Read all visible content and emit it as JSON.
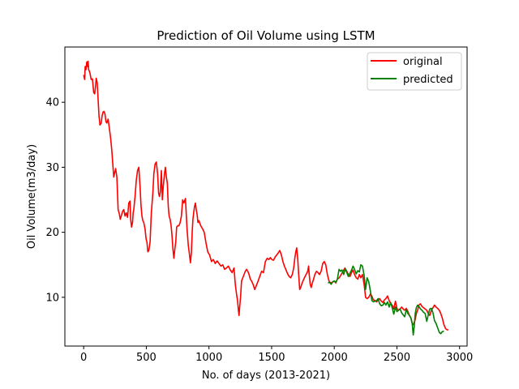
{
  "chart_data": {
    "type": "line",
    "title": "Prediction of Oil Volume using LSTM",
    "xlabel": "No. of days (2013-2021)",
    "ylabel": "Oil Volume(m3/day)",
    "xlim": [
      -150,
      3060
    ],
    "ylim": [
      2.5,
      48.5
    ],
    "xticks": [
      0,
      500,
      1000,
      1500,
      2000,
      2500,
      3000
    ],
    "yticks": [
      10,
      20,
      30,
      40
    ],
    "grid": false,
    "legend_position": "top-right",
    "series": [
      {
        "name": "original",
        "color": "#ff0000",
        "x": [
          0,
          8,
          12,
          18,
          25,
          30,
          35,
          40,
          45,
          50,
          60,
          70,
          80,
          88,
          95,
          100,
          108,
          115,
          122,
          130,
          140,
          148,
          155,
          162,
          170,
          178,
          185,
          195,
          205,
          215,
          225,
          240,
          255,
          265,
          275,
          285,
          292,
          300,
          310,
          320,
          330,
          340,
          350,
          360,
          370,
          375,
          382,
          390,
          395,
          400,
          410,
          420,
          430,
          440,
          450,
          458,
          465,
          472,
          480,
          490,
          498,
          505,
          512,
          520,
          530,
          540,
          552,
          560,
          570,
          580,
          590,
          598,
          605,
          612,
          620,
          628,
          635,
          645,
          652,
          660,
          668,
          675,
          682,
          690,
          698,
          705,
          712,
          720,
          728,
          735,
          742,
          750,
          760,
          770,
          780,
          790,
          800,
          812,
          825,
          835,
          845,
          852,
          860,
          866,
          872,
          878,
          885,
          892,
          898,
          905,
          912,
          920,
          930,
          940,
          950,
          962,
          975,
          990,
          1005,
          1020,
          1035,
          1050,
          1065,
          1080,
          1095,
          1110,
          1125,
          1140,
          1155,
          1170,
          1185,
          1200,
          1210,
          1220,
          1228,
          1235,
          1240,
          1245,
          1252,
          1260,
          1270,
          1280,
          1290,
          1300,
          1310,
          1320,
          1330,
          1340,
          1352,
          1365,
          1378,
          1392,
          1405,
          1420,
          1435,
          1450,
          1465,
          1478,
          1490,
          1502,
          1515,
          1528,
          1540,
          1552,
          1565,
          1578,
          1590,
          1602,
          1615,
          1628,
          1640,
          1652,
          1665,
          1676,
          1685,
          1693,
          1700,
          1708,
          1716,
          1724,
          1732,
          1740,
          1750,
          1762,
          1775,
          1788,
          1795,
          1800,
          1808,
          1816,
          1825,
          1835,
          1845,
          1858,
          1870,
          1882,
          1895,
          1908,
          1920,
          1932,
          1945,
          1958,
          1970,
          1985,
          2000,
          2012,
          2025,
          2040,
          2055,
          2070,
          2085,
          2100,
          2112,
          2125,
          2138,
          2150,
          2162,
          2175,
          2188,
          2200,
          2212,
          2225,
          2238,
          2250,
          2262,
          2275,
          2288,
          2300,
          2312,
          2325,
          2338,
          2350,
          2362,
          2375,
          2388,
          2400,
          2412,
          2425,
          2438,
          2450,
          2462,
          2475,
          2488,
          2500,
          2512,
          2525,
          2538,
          2550,
          2562,
          2575,
          2588,
          2600,
          2612,
          2625,
          2635,
          2645,
          2655,
          2665,
          2675,
          2688,
          2700,
          2712,
          2725,
          2738,
          2750,
          2762,
          2775,
          2788,
          2800,
          2812,
          2825,
          2838,
          2850,
          2862,
          2875,
          2888,
          2900,
          2910
        ],
        "y": [
          44.2,
          43.5,
          45.5,
          45.0,
          46.2,
          45.5,
          46.3,
          45.0,
          44.8,
          44.5,
          43.5,
          43.6,
          41.5,
          41.3,
          42.5,
          43.7,
          43.0,
          40.5,
          38.0,
          36.5,
          36.8,
          38.0,
          38.5,
          38.6,
          38.2,
          37.0,
          36.8,
          37.4,
          36.0,
          34.5,
          32.5,
          28.5,
          29.8,
          28.5,
          23.5,
          22.8,
          22.0,
          22.5,
          23.2,
          23.5,
          22.5,
          23.0,
          22.3,
          24.5,
          24.8,
          22.0,
          20.8,
          21.5,
          23.0,
          23.5,
          25.5,
          28.0,
          29.5,
          30.0,
          27.0,
          24.0,
          22.5,
          21.8,
          21.5,
          20.5,
          19.0,
          18.5,
          17.0,
          17.2,
          18.5,
          23.0,
          26.0,
          29.0,
          30.5,
          30.8,
          29.0,
          26.0,
          25.5,
          26.2,
          29.5,
          25.0,
          27.0,
          29.0,
          30.0,
          28.5,
          27.5,
          24.0,
          22.5,
          22.0,
          21.0,
          19.5,
          17.5,
          16.0,
          17.5,
          18.5,
          20.8,
          21.0,
          21.0,
          21.5,
          22.5,
          25.0,
          24.5,
          25.2,
          20.5,
          18.0,
          16.5,
          15.3,
          17.0,
          20.0,
          22.0,
          23.0,
          24.0,
          24.5,
          23.5,
          22.8,
          21.5,
          21.8,
          21.2,
          20.8,
          20.5,
          20.0,
          18.5,
          17.0,
          16.5,
          15.5,
          15.8,
          15.2,
          15.6,
          15.2,
          14.8,
          15.0,
          14.3,
          14.5,
          14.8,
          14.2,
          13.8,
          14.5,
          12.0,
          10.5,
          9.5,
          8.0,
          7.2,
          8.5,
          10.0,
          12.5,
          13.0,
          13.5,
          14.0,
          14.3,
          14.0,
          13.5,
          12.8,
          12.5,
          12.0,
          11.2,
          11.8,
          12.5,
          13.2,
          14.0,
          13.8,
          15.5,
          16.0,
          15.8,
          16.1,
          15.8,
          15.7,
          16.2,
          16.5,
          16.8,
          17.2,
          16.5,
          15.5,
          14.8,
          14.2,
          13.6,
          13.2,
          13.0,
          13.5,
          14.5,
          16.0,
          17.0,
          17.6,
          16.0,
          13.5,
          11.2,
          11.5,
          12.0,
          12.5,
          13.0,
          13.5,
          14.0,
          14.8,
          13.5,
          12.0,
          11.5,
          12.2,
          12.8,
          13.5,
          14.0,
          13.8,
          13.5,
          14.0,
          15.2,
          15.5,
          15.0,
          13.5,
          12.5,
          12.2,
          12.3,
          12.5,
          12.2,
          12.8,
          13.0,
          13.5,
          14.0,
          14.5,
          14.0,
          13.5,
          13.2,
          13.8,
          14.2,
          13.5,
          13.0,
          12.8,
          13.5,
          13.0,
          13.5,
          12.0,
          10.0,
          9.8,
          10.0,
          10.5,
          10.2,
          9.6,
          9.5,
          9.3,
          9.6,
          9.8,
          9.4,
          9.2,
          9.6,
          9.8,
          10.2,
          9.5,
          9.0,
          8.8,
          8.2,
          9.4,
          8.3,
          8.0,
          8.2,
          8.5,
          8.2,
          8.0,
          8.3,
          7.8,
          7.2,
          6.8,
          5.7,
          6.0,
          6.5,
          7.5,
          8.0,
          8.8,
          9.0,
          8.6,
          8.4,
          8.2,
          8.0,
          7.5,
          7.2,
          8.0,
          8.4,
          8.8,
          8.5,
          8.3,
          8.0,
          7.5,
          6.8,
          5.8,
          5.2,
          5.0,
          5.0
        ]
      },
      {
        "name": "predicted",
        "color": "#008000",
        "x": [
          1950,
          1962,
          1975,
          1988,
          2000,
          2012,
          2025,
          2038,
          2050,
          2062,
          2075,
          2088,
          2100,
          2112,
          2125,
          2138,
          2150,
          2162,
          2175,
          2188,
          2200,
          2212,
          2225,
          2238,
          2250,
          2262,
          2275,
          2288,
          2300,
          2312,
          2325,
          2338,
          2350,
          2362,
          2375,
          2388,
          2400,
          2412,
          2425,
          2438,
          2450,
          2462,
          2475,
          2488,
          2500,
          2512,
          2525,
          2538,
          2550,
          2562,
          2575,
          2588,
          2600,
          2612,
          2622,
          2630,
          2638,
          2646,
          2655,
          2665,
          2675,
          2688,
          2700,
          2712,
          2725,
          2738,
          2750,
          2762,
          2775,
          2788,
          2800,
          2812,
          2825,
          2838,
          2850,
          2862,
          2875
        ],
        "y": [
          12.2,
          12.3,
          12.0,
          12.4,
          12.5,
          12.3,
          12.8,
          14.3,
          14.0,
          14.2,
          13.5,
          14.4,
          13.8,
          13.2,
          13.7,
          14.2,
          14.8,
          14.3,
          13.6,
          14.1,
          13.9,
          15.0,
          14.8,
          13.4,
          11.2,
          13.0,
          12.4,
          11.0,
          9.5,
          9.3,
          9.4,
          9.5,
          9.8,
          9.0,
          8.7,
          8.8,
          9.2,
          8.8,
          9.3,
          8.5,
          9.2,
          8.4,
          7.4,
          8.5,
          7.8,
          8.0,
          8.2,
          7.6,
          7.3,
          7.0,
          8.1,
          7.5,
          7.2,
          6.8,
          6.0,
          4.2,
          5.5,
          7.5,
          8.4,
          8.8,
          8.6,
          8.2,
          8.0,
          7.7,
          7.5,
          6.3,
          7.3,
          8.2,
          8.3,
          7.6,
          6.4,
          6.0,
          5.3,
          4.6,
          4.4,
          4.7,
          4.8
        ]
      }
    ]
  }
}
